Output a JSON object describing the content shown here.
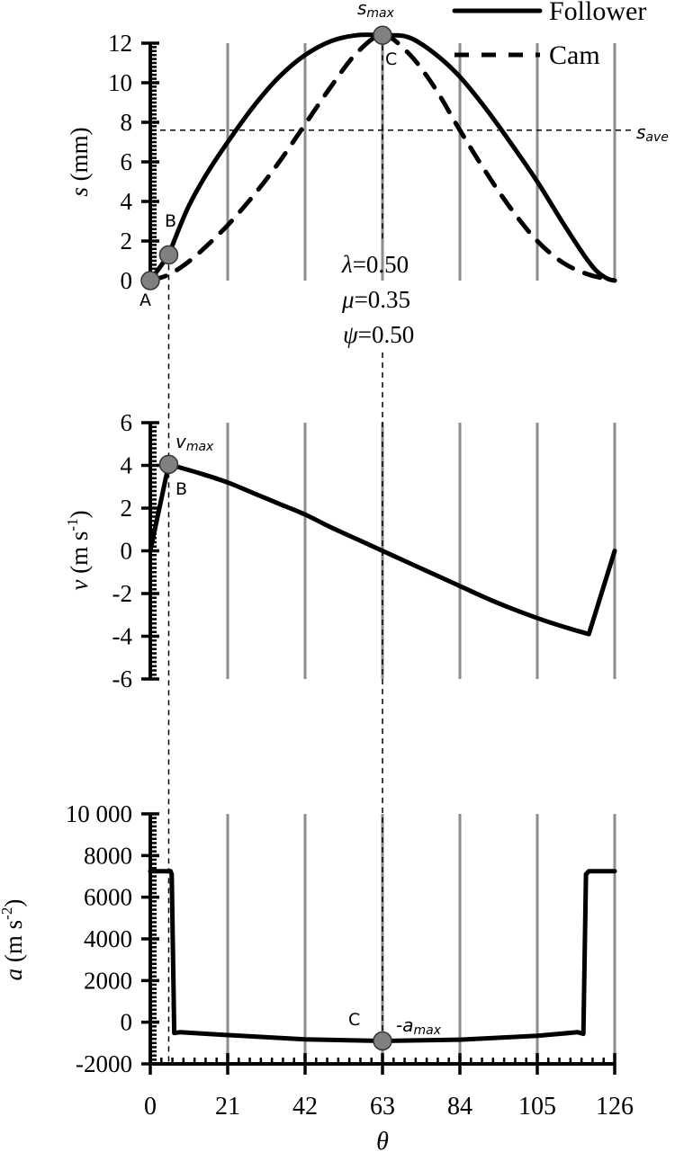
{
  "chart_data": [
    {
      "type": "line",
      "panel": "displacement",
      "ylabel_symbol": "s",
      "ylabel_unit": " (mm)",
      "ylim": [
        0,
        12
      ],
      "yticks": [
        "0",
        "2",
        "4",
        "6",
        "8",
        "10",
        "12"
      ],
      "ytick_values": [
        0,
        2,
        4,
        6,
        8,
        10,
        12
      ],
      "legend": {
        "placement": "top-right",
        "entries": [
          {
            "label": "Follower",
            "style": "solid"
          },
          {
            "label": "Cam",
            "style": "dashed"
          }
        ]
      },
      "series": [
        {
          "name": "Follower",
          "style": "solid",
          "x": [
            0,
            5,
            10,
            15,
            21,
            28,
            35,
            42,
            49,
            56,
            63,
            70,
            77,
            84,
            91,
            98,
            105,
            112,
            118,
            121,
            124,
            126
          ],
          "y": [
            0,
            1.3,
            3.6,
            5.3,
            7.0,
            8.8,
            10.3,
            11.4,
            12.1,
            12.4,
            12.4,
            12.3,
            11.5,
            10.3,
            8.7,
            6.9,
            5.0,
            2.9,
            1.2,
            0.5,
            0.1,
            0
          ]
        },
        {
          "name": "Cam",
          "style": "dashed",
          "x": [
            0,
            5,
            10,
            15,
            21,
            28,
            35,
            42,
            49,
            56,
            63,
            70,
            77,
            84,
            91,
            98,
            105,
            112,
            119,
            126
          ],
          "y": [
            0,
            0.3,
            0.9,
            1.7,
            2.8,
            4.3,
            6.0,
            7.9,
            9.8,
            11.5,
            12.4,
            11.5,
            9.8,
            7.6,
            5.5,
            3.6,
            2.0,
            0.9,
            0.3,
            0
          ]
        }
      ],
      "reference_line": {
        "label_main": "s",
        "label_sub": "ave",
        "y": 7.6
      },
      "points": [
        {
          "label": "A",
          "x": 0,
          "y": 0
        },
        {
          "label": "B",
          "x": 5,
          "y": 1.3
        },
        {
          "label": "C",
          "x": 63,
          "y": 12.4,
          "annotation_main": "s",
          "annotation_sub": "max"
        }
      ],
      "parameters": [
        "λ=0.50",
        "μ=0.35",
        "ψ=0.50"
      ],
      "param_symbols": [
        "λ",
        "μ",
        "ψ"
      ],
      "param_values": [
        "=0.50",
        "=0.35",
        "=0.50"
      ]
    },
    {
      "type": "line",
      "panel": "velocity",
      "ylabel_symbol": "v",
      "ylabel_unit": " (m s",
      "ylabel_exp": "-1",
      "ylabel_close": ")",
      "ylim": [
        -6,
        6
      ],
      "yticks": [
        "-6",
        "-4",
        "-2",
        "0",
        "2",
        "4",
        "6"
      ],
      "ytick_values": [
        -6,
        -4,
        -2,
        0,
        2,
        4,
        6
      ],
      "series": [
        {
          "name": "Follower",
          "style": "solid",
          "x": [
            0,
            5,
            14,
            21,
            28,
            35,
            42,
            49,
            56,
            63,
            70,
            77,
            84,
            91,
            98,
            105,
            112,
            119,
            126
          ],
          "y": [
            0,
            4.05,
            3.6,
            3.2,
            2.7,
            2.2,
            1.7,
            1.1,
            0.55,
            0,
            -0.55,
            -1.1,
            -1.65,
            -2.2,
            -2.7,
            -3.15,
            -3.55,
            -3.9,
            0
          ]
        }
      ],
      "points": [
        {
          "label": "B",
          "x": 5,
          "y": 4.05,
          "annotation_main": "v",
          "annotation_sub": "max"
        }
      ]
    },
    {
      "type": "line",
      "panel": "acceleration",
      "ylabel_symbol": "a",
      "ylabel_unit": " (m s",
      "ylabel_exp": "-2",
      "ylabel_close": ")",
      "ylim": [
        -2000,
        10000
      ],
      "yticks": [
        "-2000",
        "0",
        "2000",
        "4000",
        "6000",
        "8000",
        "10 000"
      ],
      "ytick_values": [
        -2000,
        0,
        2000,
        4000,
        6000,
        8000,
        10000
      ],
      "series": [
        {
          "name": "Follower",
          "style": "solid",
          "x": [
            0,
            5.5,
            5.8,
            6.5,
            8,
            21,
            42,
            63,
            84,
            105,
            116,
            117.5,
            118.2,
            119,
            126
          ],
          "y": [
            7250,
            7250,
            7100,
            -520,
            -480,
            -620,
            -820,
            -900,
            -840,
            -650,
            -480,
            -560,
            7100,
            7250,
            7250
          ]
        }
      ],
      "points": [
        {
          "label": "C",
          "x": 63,
          "y": -900,
          "annotation_main": "-a",
          "annotation_sub": "max"
        }
      ]
    }
  ],
  "x_axis": {
    "label": "θ",
    "xlim": [
      0,
      126
    ],
    "ticks": [
      "0",
      "21",
      "42",
      "63",
      "84",
      "105",
      "126"
    ],
    "tick_values": [
      0,
      21,
      42,
      63,
      84,
      105,
      126
    ],
    "grid": true
  },
  "colors": {
    "line": "#000000",
    "grid": "#8c8c8c",
    "marker": "#808080"
  }
}
